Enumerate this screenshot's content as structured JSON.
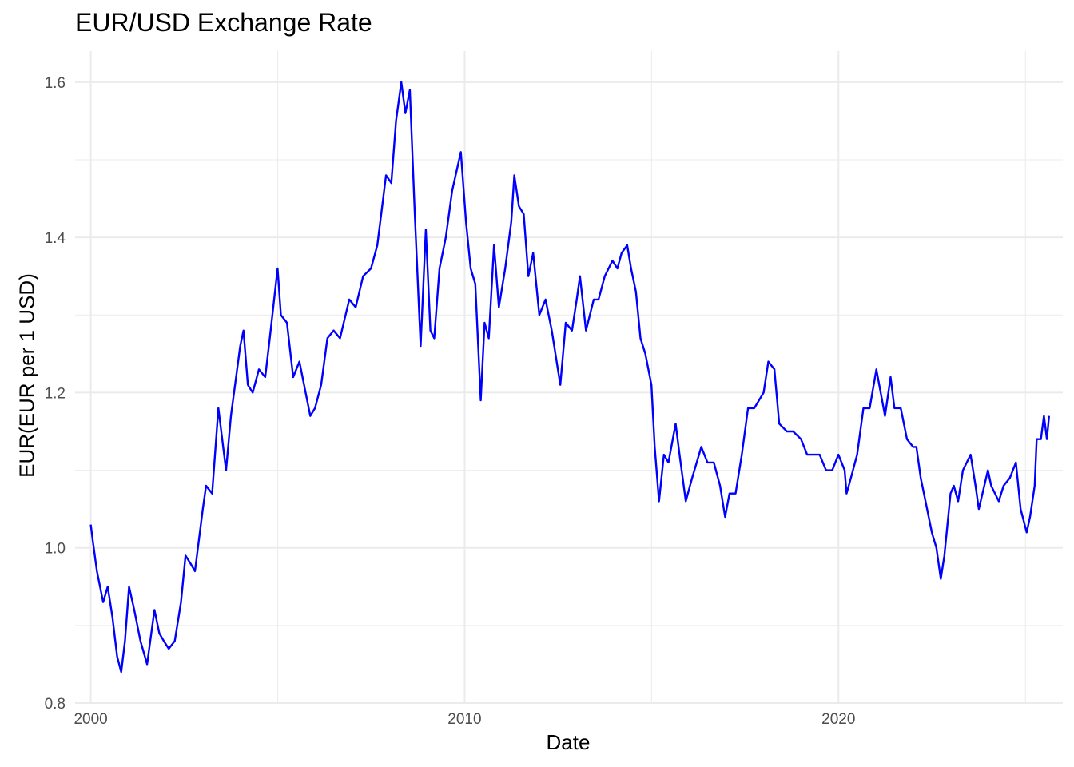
{
  "chart_data": {
    "type": "line",
    "title": "EUR/USD Exchange Rate",
    "xlabel": "Date",
    "ylabel": "EUR(EUR per 1 USD)",
    "x_ticks": [
      "2000",
      "2010",
      "2020"
    ],
    "y_ticks": [
      "0.8",
      "1.0",
      "1.2",
      "1.4",
      "1.6"
    ],
    "xlim": [
      "1999-08-01",
      "2026-01-01"
    ],
    "ylim": [
      0.8,
      1.64
    ],
    "grid": true,
    "line_color": "#0000ff",
    "series": [
      {
        "x": [
          "2000-01-01",
          "2000-01-20",
          "2000-03-01",
          "2000-05-01",
          "2000-06-15",
          "2000-08-01",
          "2000-09-15",
          "2000-10-25",
          "2000-12-01",
          "2001-01-10",
          "2001-03-01",
          "2001-05-01",
          "2001-07-05",
          "2001-09-15",
          "2001-11-01",
          "2001-12-15",
          "2002-02-01",
          "2002-04-01",
          "2002-06-01",
          "2002-07-15",
          "2002-09-01",
          "2002-10-15",
          "2002-12-31",
          "2003-02-01",
          "2003-04-01",
          "2003-06-01",
          "2003-08-15",
          "2003-10-01",
          "2003-12-31",
          "2004-02-01",
          "2004-03-15",
          "2004-05-01",
          "2004-07-01",
          "2004-09-01",
          "2004-10-15",
          "2004-12-31",
          "2005-02-01",
          "2005-04-01",
          "2005-06-01",
          "2005-08-01",
          "2005-11-15",
          "2005-12-31",
          "2006-03-01",
          "2006-05-01",
          "2006-07-01",
          "2006-09-01",
          "2006-12-01",
          "2007-02-01",
          "2007-04-15",
          "2007-07-01",
          "2007-09-01",
          "2007-11-25",
          "2008-01-15",
          "2008-03-01",
          "2008-04-22",
          "2008-06-01",
          "2008-07-15",
          "2008-09-01",
          "2008-10-28",
          "2008-12-18",
          "2009-02-01",
          "2009-03-10",
          "2009-05-01",
          "2009-07-01",
          "2009-09-01",
          "2009-11-25",
          "2010-01-15",
          "2010-03-01",
          "2010-04-15",
          "2010-06-07",
          "2010-07-15",
          "2010-08-25",
          "2010-10-15",
          "2010-12-01",
          "2011-02-01",
          "2011-04-01",
          "2011-05-01",
          "2011-06-15",
          "2011-08-01",
          "2011-09-15",
          "2011-11-01",
          "2011-12-31",
          "2012-03-01",
          "2012-05-01",
          "2012-07-24",
          "2012-09-15",
          "2012-11-15",
          "2012-12-31",
          "2013-02-01",
          "2013-04-01",
          "2013-06-15",
          "2013-08-01",
          "2013-10-01",
          "2013-12-15",
          "2014-02-01",
          "2014-03-15",
          "2014-05-08",
          "2014-06-15",
          "2014-08-01",
          "2014-09-15",
          "2014-11-01",
          "2014-12-31",
          "2015-02-01",
          "2015-03-15",
          "2015-05-01",
          "2015-06-15",
          "2015-08-24",
          "2015-10-01",
          "2015-12-01",
          "2016-02-01",
          "2016-05-01",
          "2016-07-01",
          "2016-09-01",
          "2016-11-01",
          "2016-12-20",
          "2017-02-01",
          "2017-04-01",
          "2017-06-01",
          "2017-08-01",
          "2017-10-01",
          "2017-12-31",
          "2018-02-15",
          "2018-04-15",
          "2018-06-01",
          "2018-08-15",
          "2018-10-15",
          "2018-12-31",
          "2019-03-01",
          "2019-05-01",
          "2019-07-01",
          "2019-09-01",
          "2019-11-01",
          "2019-12-31",
          "2020-03-01",
          "2020-03-20",
          "2020-05-01",
          "2020-07-01",
          "2020-09-01",
          "2020-11-01",
          "2021-01-06",
          "2021-03-31",
          "2021-05-25",
          "2021-07-01",
          "2021-09-01",
          "2021-11-01",
          "2021-12-31",
          "2022-02-01",
          "2022-03-15",
          "2022-05-01",
          "2022-07-01",
          "2022-08-15",
          "2022-09-27",
          "2022-11-01",
          "2022-12-31",
          "2023-02-01",
          "2023-03-15",
          "2023-05-01",
          "2023-07-15",
          "2023-09-01",
          "2023-10-03",
          "2023-12-31",
          "2024-02-01",
          "2024-04-15",
          "2024-06-01",
          "2024-08-01",
          "2024-09-30",
          "2024-11-15",
          "2025-01-13",
          "2025-02-15",
          "2025-04-01",
          "2025-04-21",
          "2025-06-01",
          "2025-07-01",
          "2025-07-30",
          "2025-08-20"
        ],
        "y": [
          1.03,
          1.01,
          0.97,
          0.93,
          0.95,
          0.91,
          0.86,
          0.84,
          0.88,
          0.95,
          0.92,
          0.88,
          0.85,
          0.92,
          0.89,
          0.88,
          0.87,
          0.88,
          0.93,
          0.99,
          0.98,
          0.97,
          1.05,
          1.08,
          1.07,
          1.18,
          1.1,
          1.17,
          1.26,
          1.28,
          1.21,
          1.2,
          1.23,
          1.22,
          1.27,
          1.36,
          1.3,
          1.29,
          1.22,
          1.24,
          1.17,
          1.18,
          1.21,
          1.27,
          1.28,
          1.27,
          1.32,
          1.31,
          1.35,
          1.36,
          1.39,
          1.48,
          1.47,
          1.55,
          1.6,
          1.56,
          1.59,
          1.43,
          1.26,
          1.41,
          1.28,
          1.27,
          1.36,
          1.4,
          1.46,
          1.51,
          1.42,
          1.36,
          1.34,
          1.19,
          1.29,
          1.27,
          1.39,
          1.31,
          1.36,
          1.42,
          1.48,
          1.44,
          1.43,
          1.35,
          1.38,
          1.3,
          1.32,
          1.28,
          1.21,
          1.29,
          1.28,
          1.32,
          1.35,
          1.28,
          1.32,
          1.32,
          1.35,
          1.37,
          1.36,
          1.38,
          1.39,
          1.36,
          1.33,
          1.27,
          1.25,
          1.21,
          1.13,
          1.06,
          1.12,
          1.11,
          1.16,
          1.12,
          1.06,
          1.09,
          1.13,
          1.11,
          1.11,
          1.08,
          1.04,
          1.07,
          1.07,
          1.12,
          1.18,
          1.18,
          1.2,
          1.24,
          1.23,
          1.16,
          1.15,
          1.15,
          1.14,
          1.12,
          1.12,
          1.12,
          1.1,
          1.1,
          1.12,
          1.1,
          1.07,
          1.09,
          1.12,
          1.18,
          1.18,
          1.23,
          1.17,
          1.22,
          1.18,
          1.18,
          1.14,
          1.13,
          1.13,
          1.09,
          1.06,
          1.02,
          1.0,
          0.96,
          0.99,
          1.07,
          1.08,
          1.06,
          1.1,
          1.12,
          1.08,
          1.05,
          1.1,
          1.08,
          1.06,
          1.08,
          1.09,
          1.11,
          1.05,
          1.02,
          1.04,
          1.08,
          1.14,
          1.14,
          1.17,
          1.14,
          1.17
        ]
      }
    ]
  }
}
